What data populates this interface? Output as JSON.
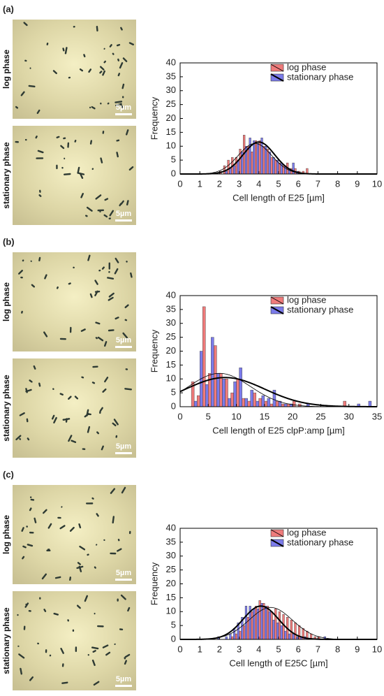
{
  "chart_data": [
    {
      "type": "histogram",
      "panel": "(a)",
      "images": [
        {
          "label": "log phase",
          "scale": "5µm"
        },
        {
          "label": "stationary phase",
          "scale": "5µm"
        }
      ],
      "xlabel": "Cell length of E25 [µm]",
      "ylabel": "Frequency",
      "xlim": [
        0,
        10
      ],
      "xticks": [
        0,
        1,
        2,
        3,
        4,
        5,
        6,
        7,
        8,
        9,
        10
      ],
      "ylim": [
        0,
        40
      ],
      "yticks": [
        0,
        5,
        10,
        15,
        20,
        25,
        30,
        35,
        40
      ],
      "legend": "upper right",
      "bins": [
        2.0,
        2.2,
        2.4,
        2.6,
        2.8,
        3.0,
        3.2,
        3.4,
        3.6,
        3.8,
        4.0,
        4.2,
        4.4,
        4.6,
        4.8,
        5.0,
        5.2,
        5.4,
        5.6,
        5.8,
        6.0,
        6.2,
        6.4,
        6.6
      ],
      "series": [
        {
          "name": "log phase",
          "color": "#ef7b7b",
          "values": [
            1,
            3,
            5,
            6,
            6,
            9,
            14,
            10,
            8,
            12,
            12,
            10,
            9,
            6,
            5,
            4,
            3,
            4,
            2,
            2,
            1,
            1,
            2
          ],
          "fit": {
            "mean": 3.8,
            "sd": 0.85,
            "peak": 11
          }
        },
        {
          "name": "stationary phase",
          "color": "#7b7bea",
          "values": [
            0,
            1,
            2,
            3,
            5,
            8,
            10,
            13,
            12,
            11,
            13,
            10,
            8,
            6,
            5,
            4,
            3,
            2,
            4,
            1,
            0,
            0,
            0
          ],
          "fit": {
            "mean": 4.0,
            "sd": 0.8,
            "peak": 11.5
          }
        }
      ]
    },
    {
      "type": "histogram",
      "panel": "(b)",
      "images": [
        {
          "label": "log phase",
          "scale": "5µm"
        },
        {
          "label": "stationary phase",
          "scale": "5µm"
        }
      ],
      "xlabel": "Cell length of E25 clpP:amp [µm]",
      "ylabel": "Frequency",
      "xlim": [
        0,
        35
      ],
      "xticks": [
        0,
        5,
        10,
        15,
        20,
        25,
        30,
        35
      ],
      "ylim": [
        0,
        40
      ],
      "yticks": [
        0,
        5,
        10,
        15,
        20,
        25,
        30,
        35,
        40
      ],
      "legend": "upper right",
      "bins": [
        1,
        2,
        3,
        4,
        5,
        6,
        7,
        8,
        9,
        10,
        11,
        12,
        13,
        14,
        15,
        16,
        17,
        18,
        19,
        20,
        21,
        22,
        23,
        24,
        25,
        26,
        27,
        28,
        29,
        30,
        31,
        32,
        33,
        34
      ],
      "series": [
        {
          "name": "log phase",
          "color": "#ef7b7b",
          "values": [
            0,
            9,
            4,
            36,
            12,
            22,
            12,
            10,
            5,
            10,
            3,
            2,
            5,
            3,
            2,
            1,
            2,
            1,
            1,
            2,
            1,
            0,
            0,
            0,
            0,
            0,
            0,
            0,
            2,
            0,
            0,
            0,
            0
          ],
          "fit": {
            "mean": 7,
            "sd": 5.5,
            "peak": 12
          }
        },
        {
          "name": "stationary phase",
          "color": "#7b7bea",
          "values": [
            0,
            2,
            20,
            8,
            25,
            12,
            10,
            3,
            9,
            14,
            3,
            6,
            2,
            4,
            3,
            6,
            2,
            1,
            1,
            0,
            0,
            1,
            0,
            0,
            0,
            0,
            0,
            0,
            0,
            0,
            1,
            0,
            2
          ],
          "fit": {
            "mean": 8,
            "sd": 7,
            "peak": 10.5
          }
        }
      ]
    },
    {
      "type": "histogram",
      "panel": "(c)",
      "images": [
        {
          "label": "log phase",
          "scale": "5µm"
        },
        {
          "label": "stationary phase",
          "scale": "5µm"
        }
      ],
      "xlabel": "Cell length of E25C [µm]",
      "ylabel": "Frequency",
      "xlim": [
        0,
        10
      ],
      "xticks": [
        0,
        1,
        2,
        3,
        4,
        5,
        6,
        7,
        8,
        9,
        10
      ],
      "ylim": [
        0,
        40
      ],
      "yticks": [
        0,
        5,
        10,
        15,
        20,
        25,
        30,
        35,
        40
      ],
      "legend": "upper right",
      "bins": [
        1.6,
        1.8,
        2.0,
        2.2,
        2.4,
        2.6,
        2.8,
        3.0,
        3.2,
        3.4,
        3.6,
        3.8,
        4.0,
        4.2,
        4.4,
        4.6,
        4.8,
        5.0,
        5.2,
        5.4,
        5.6,
        5.8,
        6.0,
        6.2,
        6.4,
        6.6,
        6.8,
        7.0,
        7.2,
        7.4,
        7.6
      ],
      "series": [
        {
          "name": "log phase",
          "color": "#ef7b7b",
          "values": [
            0,
            0,
            0,
            0,
            0,
            1,
            2,
            3,
            5,
            8,
            10,
            12,
            14,
            13,
            12,
            10,
            11,
            10,
            9,
            8,
            7,
            6,
            5,
            4,
            3,
            2,
            1,
            1,
            0,
            0
          ],
          "fit": {
            "mean": 4.6,
            "sd": 1.1,
            "peak": 11.5
          }
        },
        {
          "name": "stationary phase",
          "color": "#7b7bea",
          "values": [
            0,
            1,
            0,
            1,
            2,
            4,
            6,
            8,
            12,
            12,
            11,
            11,
            13,
            12,
            10,
            7,
            6,
            5,
            3,
            2,
            2,
            1,
            1,
            1,
            0,
            0,
            0,
            0,
            1,
            0
          ],
          "fit": {
            "mean": 4.1,
            "sd": 0.9,
            "peak": 12
          }
        }
      ]
    }
  ]
}
